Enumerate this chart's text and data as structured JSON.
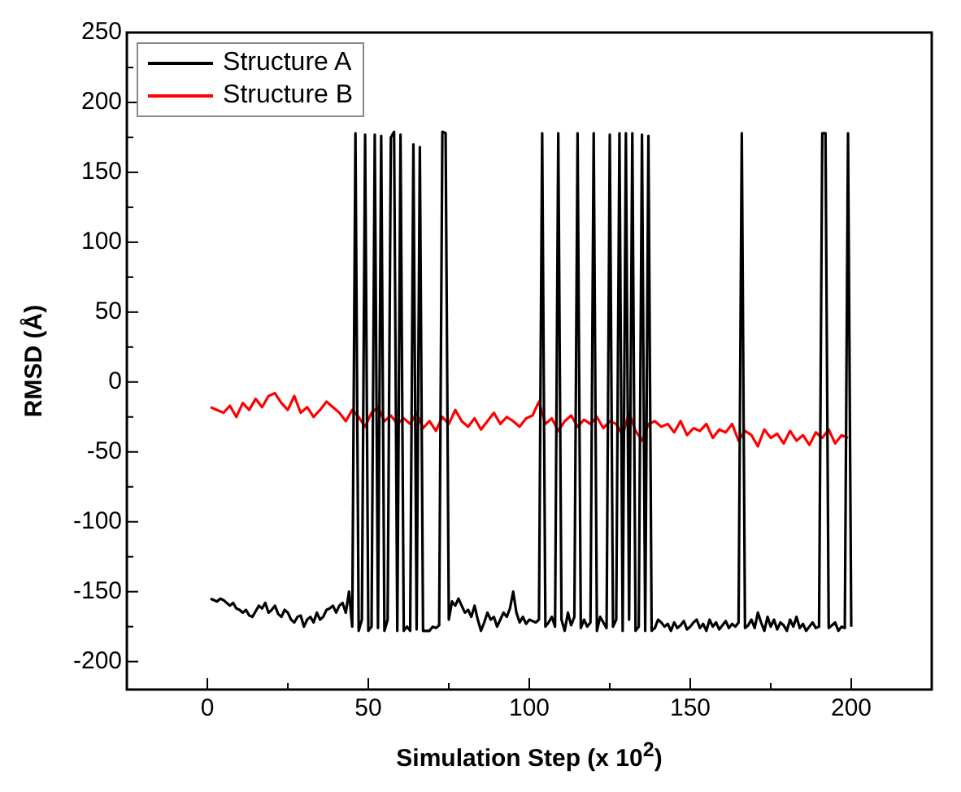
{
  "chart_data": {
    "type": "line",
    "xlabel": "Simulation Step (x 10$^{2}$)",
    "ylabel": "RMSD (Å)",
    "legend": "top left",
    "grid": false,
    "xlim": [
      -25,
      225
    ],
    "xticks": [
      0,
      {
        "value": 25,
        "label": null
      },
      50,
      {
        "value": 75,
        "label": null
      },
      100,
      {
        "value": 125,
        "label": null
      },
      150,
      {
        "value": 175,
        "label": null
      },
      200
    ],
    "ylim": [
      -220,
      250
    ],
    "yticks": [
      -200,
      {
        "value": -175,
        "label": null
      },
      -150,
      {
        "value": -125,
        "label": null
      },
      -100,
      {
        "value": -75,
        "label": null
      },
      -50,
      {
        "value": -25,
        "label": null
      },
      0,
      {
        "value": 25,
        "label": null
      },
      50,
      {
        "value": 75,
        "label": null
      },
      100,
      {
        "value": 125,
        "label": null
      },
      150,
      {
        "value": 175,
        "label": null
      },
      200,
      {
        "value": 225,
        "label": null
      },
      250
    ],
    "x": [
      1,
      2,
      3,
      4,
      5,
      6,
      7,
      8,
      9,
      10,
      11,
      12,
      13,
      14,
      15,
      16,
      17,
      18,
      19,
      20,
      21,
      22,
      23,
      24,
      25,
      26,
      27,
      28,
      29,
      30,
      31,
      32,
      33,
      34,
      35,
      36,
      37,
      38,
      39,
      40,
      41,
      42,
      43,
      44,
      45,
      46,
      47,
      48,
      49,
      50,
      51,
      52,
      53,
      54,
      55,
      56,
      57,
      58,
      59,
      60,
      61,
      62,
      63,
      64,
      65,
      66,
      67,
      68,
      69,
      70,
      71,
      72,
      73,
      74,
      75,
      76,
      77,
      78,
      79,
      80,
      81,
      82,
      83,
      84,
      85,
      86,
      87,
      88,
      89,
      90,
      91,
      92,
      93,
      94,
      95,
      96,
      97,
      98,
      99,
      100,
      101,
      102,
      103,
      104,
      105,
      106,
      107,
      108,
      109,
      110,
      111,
      112,
      113,
      114,
      115,
      116,
      117,
      118,
      119,
      120,
      121,
      122,
      123,
      124,
      125,
      126,
      127,
      128,
      129,
      130,
      131,
      132,
      133,
      134,
      135,
      136,
      137,
      138,
      139,
      140,
      141,
      142,
      143,
      144,
      145,
      146,
      147,
      148,
      149,
      150,
      151,
      152,
      153,
      154,
      155,
      156,
      157,
      158,
      159,
      160,
      161,
      162,
      163,
      164,
      165,
      166,
      167,
      168,
      169,
      170,
      171,
      172,
      173,
      174,
      175,
      176,
      177,
      178,
      179,
      180,
      181,
      182,
      183,
      184,
      185,
      186,
      187,
      188,
      189,
      190,
      191,
      192,
      193,
      194,
      195,
      196,
      197,
      198,
      199,
      200
    ],
    "series": [
      {
        "name": "Structure A",
        "color": "#000000",
        "values": [
          -155,
          -156,
          -157,
          -155,
          -156,
          -158,
          -160,
          -158,
          -162,
          -163,
          -165,
          -163,
          -167,
          -168,
          -164,
          -160,
          -162,
          -158,
          -165,
          -163,
          -160,
          -166,
          -168,
          -163,
          -165,
          -170,
          -172,
          -168,
          -167,
          -175,
          -170,
          -168,
          -172,
          -165,
          -170,
          -168,
          -163,
          -162,
          -160,
          -165,
          -160,
          -158,
          -165,
          -150,
          -175,
          178,
          -178,
          -170,
          177,
          -178,
          -175,
          177,
          -176,
          176,
          -178,
          -170,
          175,
          179,
          -178,
          177,
          -178,
          -175,
          -178,
          170,
          -177,
          168,
          -178,
          -178,
          -178,
          -175,
          -176,
          -174,
          179,
          178,
          -170,
          -157,
          -160,
          -155,
          -160,
          -165,
          -163,
          -168,
          -160,
          -170,
          -178,
          -172,
          -165,
          -170,
          -168,
          -175,
          -170,
          -165,
          -168,
          -162,
          -150,
          -165,
          -172,
          -168,
          -173,
          -170,
          -171,
          -172,
          -170,
          178,
          -175,
          -172,
          -168,
          -175,
          178,
          -170,
          -178,
          -165,
          -174,
          -168,
          178,
          -176,
          -170,
          -175,
          -172,
          178,
          -178,
          -168,
          -172,
          -176,
          177,
          -175,
          -170,
          178,
          -178,
          178,
          -170,
          178,
          -178,
          -175,
          177,
          -178,
          176,
          -178,
          -176,
          -170,
          -172,
          -175,
          -173,
          -178,
          -172,
          -176,
          -174,
          -171,
          -177,
          -175,
          -172,
          -170,
          -176,
          -173,
          -178,
          -170,
          -175,
          -172,
          -177,
          -174,
          -171,
          -176,
          -173,
          -175,
          -172,
          178,
          -176,
          -174,
          -170,
          -176,
          -165,
          -172,
          -178,
          -168,
          -175,
          -170,
          -177,
          -172,
          -174,
          -178,
          -170,
          -175,
          -168,
          -176,
          -173,
          -178,
          -175,
          -172,
          -176,
          -175,
          178,
          178,
          -176,
          -174,
          -172,
          -178,
          -175,
          -176,
          178,
          -175
        ]
      },
      {
        "name": "Structure B",
        "color": "#ff0000",
        "x": [
          1,
          3,
          5,
          7,
          9,
          11,
          13,
          15,
          17,
          19,
          21,
          23,
          25,
          27,
          29,
          31,
          33,
          35,
          37,
          39,
          41,
          43,
          45,
          47,
          49,
          51,
          53,
          55,
          57,
          59,
          61,
          63,
          65,
          67,
          69,
          71,
          73,
          75,
          77,
          79,
          81,
          83,
          85,
          87,
          89,
          91,
          93,
          95,
          97,
          99,
          101,
          103,
          105,
          107,
          109,
          111,
          113,
          115,
          117,
          119,
          121,
          123,
          125,
          127,
          129,
          131,
          133,
          135,
          137,
          139,
          141,
          143,
          145,
          147,
          149,
          151,
          153,
          155,
          157,
          159,
          161,
          163,
          165,
          167,
          169,
          171,
          173,
          175,
          177,
          179,
          181,
          183,
          185,
          187,
          189,
          191,
          193,
          195,
          197,
          199
        ],
        "values": [
          -18,
          -20,
          -22,
          -17,
          -25,
          -15,
          -20,
          -12,
          -18,
          -10,
          -8,
          -15,
          -20,
          -10,
          -22,
          -18,
          -25,
          -20,
          -14,
          -18,
          -22,
          -28,
          -20,
          -25,
          -32,
          -22,
          -18,
          -28,
          -24,
          -30,
          -26,
          -30,
          -22,
          -33,
          -28,
          -35,
          -25,
          -30,
          -20,
          -28,
          -32,
          -26,
          -34,
          -28,
          -22,
          -30,
          -25,
          -28,
          -32,
          -26,
          -24,
          -14,
          -30,
          -26,
          -35,
          -28,
          -24,
          -32,
          -27,
          -30,
          -25,
          -33,
          -28,
          -30,
          -38,
          -22,
          -35,
          -42,
          -30,
          -28,
          -32,
          -30,
          -36,
          -28,
          -38,
          -33,
          -35,
          -30,
          -40,
          -34,
          -36,
          -30,
          -42,
          -35,
          -38,
          -46,
          -34,
          -40,
          -37,
          -44,
          -35,
          -42,
          -38,
          -45,
          -36,
          -40,
          -34,
          -44,
          -38,
          -40
        ]
      }
    ]
  }
}
